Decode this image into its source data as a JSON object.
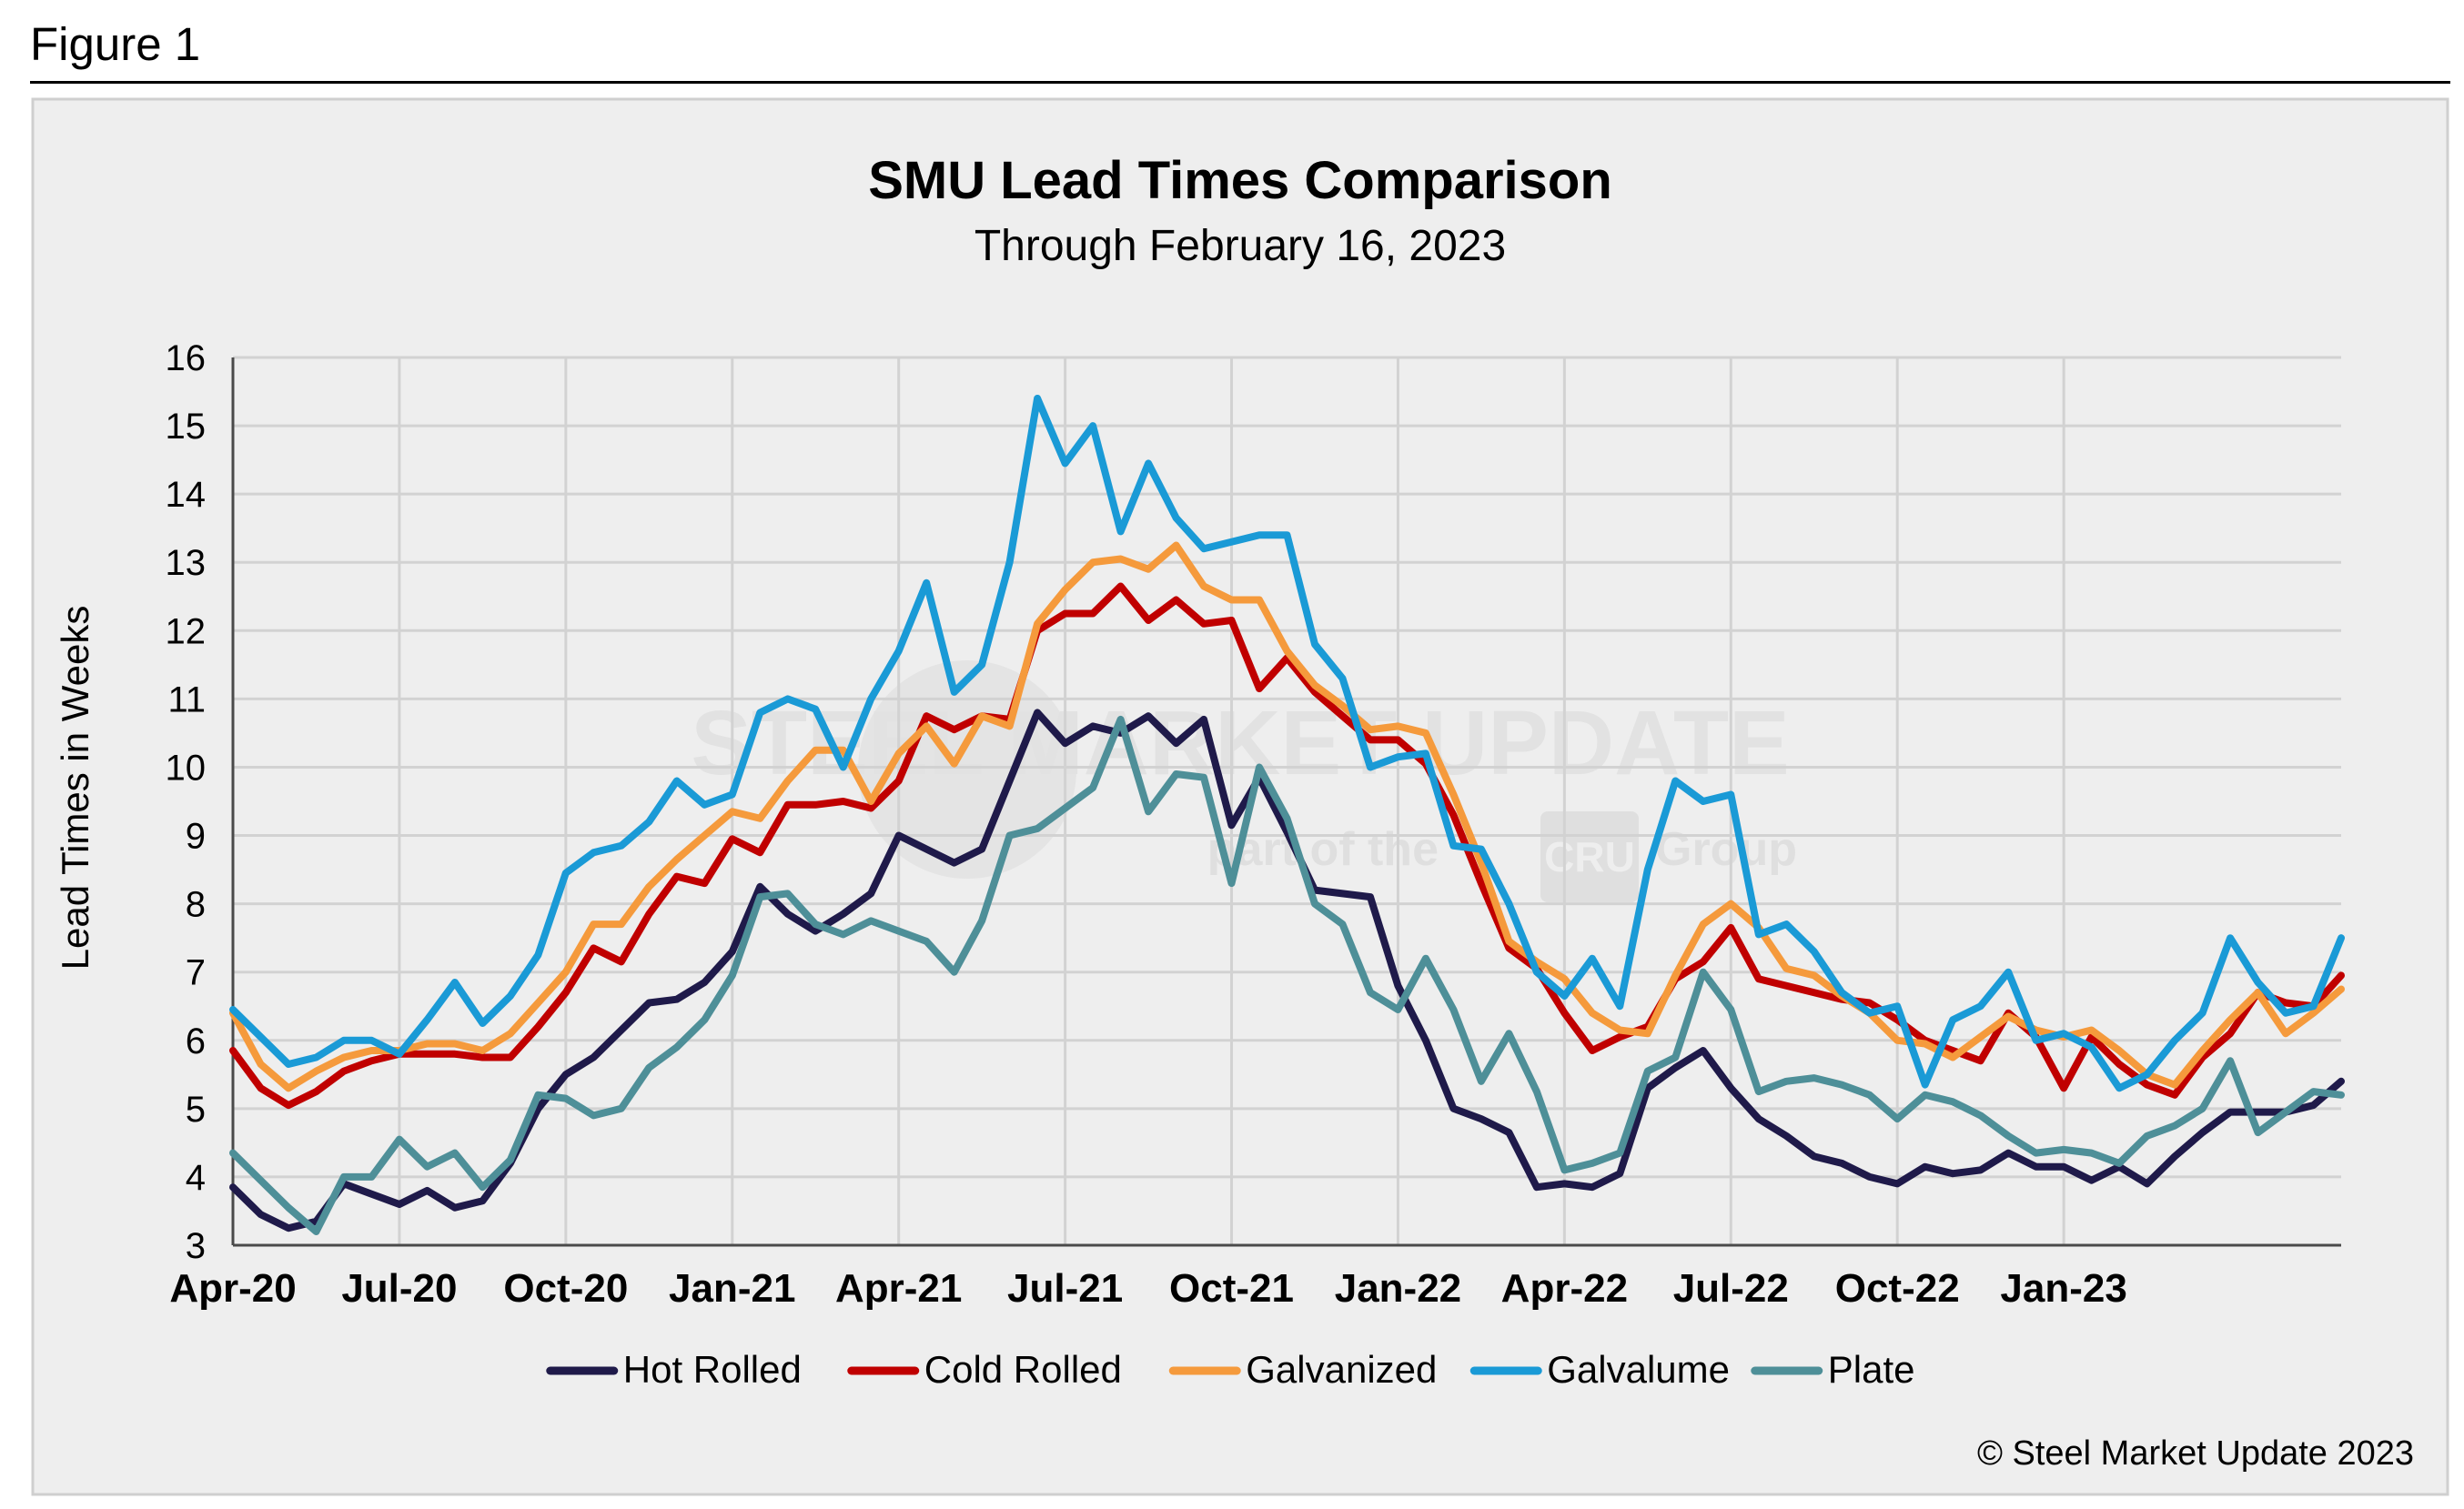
{
  "figure_label": "Figure 1",
  "watermark": {
    "text": "STEEL MARKET UPDATE",
    "subtext_left": "part of the",
    "logo": "CRU",
    "subtext_right": "Group"
  },
  "copyright": "© Steel Market Update 2023",
  "colors": {
    "hot_rolled": "#1f1a4a",
    "cold_rolled": "#c00000",
    "galvanized": "#f59a3c",
    "galvalume": "#1a9ad6",
    "plate": "#4e8f98"
  },
  "chart_data": {
    "type": "line",
    "title": "SMU Lead Times Comparison",
    "subtitle": "Through February 16, 2023",
    "ylabel": "Lead Times in Weeks",
    "xlabel": "",
    "ylim": [
      3,
      16
    ],
    "yticks": [
      3,
      4,
      5,
      6,
      7,
      8,
      9,
      10,
      11,
      12,
      13,
      14,
      15,
      16
    ],
    "x_start": "Apr-20",
    "x_interval": "semi-monthly",
    "xticks": [
      "Apr-20",
      "Jul-20",
      "Oct-20",
      "Jan-21",
      "Apr-21",
      "Jul-21",
      "Oct-21",
      "Jan-22",
      "Apr-22",
      "Jul-22",
      "Oct-22",
      "Jan-23"
    ],
    "grid": true,
    "legend_position": "bottom",
    "series": [
      {
        "name": "Hot Rolled",
        "color": "#1f1a4a",
        "values": [
          3.85,
          3.45,
          3.25,
          3.35,
          3.9,
          3.75,
          3.6,
          3.8,
          3.55,
          3.65,
          4.2,
          5.0,
          5.5,
          5.75,
          6.15,
          6.55,
          6.6,
          6.85,
          7.3,
          8.25,
          7.85,
          7.6,
          7.85,
          8.15,
          9.0,
          8.8,
          8.6,
          8.8,
          9.8,
          10.8,
          10.35,
          10.6,
          10.5,
          10.75,
          10.35,
          10.7,
          9.15,
          9.85,
          9.05,
          8.2,
          8.15,
          8.1,
          6.8,
          6.0,
          5.0,
          4.85,
          4.65,
          3.85,
          3.9,
          3.85,
          4.05,
          5.3,
          5.6,
          5.85,
          5.3,
          4.85,
          4.6,
          4.3,
          4.2,
          4.0,
          3.9,
          4.15,
          4.05,
          4.1,
          4.35,
          4.15,
          4.15,
          3.95,
          4.15,
          3.9,
          4.3,
          4.65,
          4.95,
          4.95,
          4.95,
          5.05,
          5.4
        ]
      },
      {
        "name": "Cold Rolled",
        "color": "#c00000",
        "values": [
          5.85,
          5.3,
          5.05,
          5.25,
          5.55,
          5.7,
          5.8,
          5.8,
          5.8,
          5.75,
          5.75,
          6.2,
          6.7,
          7.35,
          7.15,
          7.85,
          8.4,
          8.3,
          8.95,
          8.75,
          9.45,
          9.45,
          9.5,
          9.4,
          9.8,
          10.75,
          10.55,
          10.75,
          10.7,
          12.0,
          12.25,
          12.25,
          12.65,
          12.15,
          12.45,
          12.1,
          12.15,
          11.15,
          11.6,
          11.1,
          10.75,
          10.4,
          10.4,
          10.05,
          9.3,
          8.3,
          7.35,
          7.05,
          6.4,
          5.85,
          6.05,
          6.2,
          6.9,
          7.15,
          7.65,
          6.9,
          6.8,
          6.7,
          6.6,
          6.55,
          6.3,
          6.0,
          5.85,
          5.7,
          6.4,
          6.05,
          5.3,
          6.05,
          5.65,
          5.35,
          5.2,
          5.75,
          6.1,
          6.7,
          6.55,
          6.5,
          6.95
        ]
      },
      {
        "name": "Galvanized",
        "color": "#f59a3c",
        "values": [
          6.4,
          5.65,
          5.3,
          5.55,
          5.75,
          5.85,
          5.85,
          5.95,
          5.95,
          5.85,
          6.1,
          6.55,
          7.0,
          7.7,
          7.7,
          8.25,
          8.65,
          9.0,
          9.35,
          9.25,
          9.8,
          10.25,
          10.25,
          9.5,
          10.2,
          10.6,
          10.05,
          10.75,
          10.6,
          12.1,
          12.6,
          13.0,
          13.05,
          12.9,
          13.25,
          12.65,
          12.45,
          12.45,
          11.7,
          11.2,
          10.9,
          10.55,
          10.6,
          10.5,
          9.6,
          8.6,
          7.45,
          7.15,
          6.9,
          6.4,
          6.15,
          6.1,
          6.95,
          7.7,
          8.0,
          7.65,
          7.05,
          6.95,
          6.65,
          6.4,
          6.0,
          5.95,
          5.75,
          6.05,
          6.35,
          6.15,
          6.05,
          6.15,
          5.85,
          5.5,
          5.35,
          5.85,
          6.3,
          6.7,
          6.1,
          6.4,
          6.75
        ]
      },
      {
        "name": "Galvalume",
        "color": "#1a9ad6",
        "values": [
          6.45,
          6.05,
          5.65,
          5.75,
          6.0,
          6.0,
          5.8,
          6.3,
          6.85,
          6.25,
          6.65,
          7.25,
          8.45,
          8.75,
          8.85,
          9.2,
          9.8,
          9.45,
          9.6,
          10.8,
          11.0,
          10.85,
          10.0,
          11.0,
          11.7,
          12.7,
          11.1,
          11.5,
          13.0,
          15.4,
          14.45,
          15.0,
          13.45,
          14.45,
          13.65,
          13.2,
          13.3,
          13.4,
          13.4,
          11.8,
          11.3,
          10.0,
          10.15,
          10.2,
          8.85,
          8.8,
          8.0,
          7.0,
          6.65,
          7.2,
          6.5,
          8.5,
          9.8,
          9.5,
          9.6,
          7.55,
          7.7,
          7.3,
          6.7,
          6.4,
          6.5,
          5.35,
          6.3,
          6.5,
          7.0,
          6.0,
          6.1,
          5.9,
          5.3,
          5.5,
          6.0,
          6.4,
          7.5,
          6.85,
          6.4,
          6.5,
          7.5
        ]
      },
      {
        "name": "Plate",
        "color": "#4e8f98",
        "values": [
          4.35,
          3.95,
          3.55,
          3.2,
          4.0,
          4.0,
          4.55,
          4.15,
          4.35,
          3.85,
          4.25,
          5.2,
          5.15,
          4.9,
          5.0,
          5.6,
          5.9,
          6.3,
          6.95,
          8.1,
          8.15,
          7.7,
          7.55,
          7.75,
          7.6,
          7.45,
          7.0,
          7.75,
          9.0,
          9.1,
          9.4,
          9.7,
          10.7,
          9.35,
          9.9,
          9.85,
          8.3,
          10.0,
          9.25,
          8.0,
          7.7,
          6.7,
          6.45,
          7.2,
          6.45,
          5.4,
          6.1,
          5.25,
          4.1,
          4.2,
          4.35,
          5.55,
          5.75,
          7.0,
          6.45,
          5.25,
          5.4,
          5.45,
          5.35,
          5.2,
          4.85,
          5.2,
          5.1,
          4.9,
          4.6,
          4.35,
          4.4,
          4.35,
          4.2,
          4.6,
          4.75,
          5.0,
          5.7,
          4.65,
          4.95,
          5.25,
          5.2
        ]
      }
    ]
  }
}
